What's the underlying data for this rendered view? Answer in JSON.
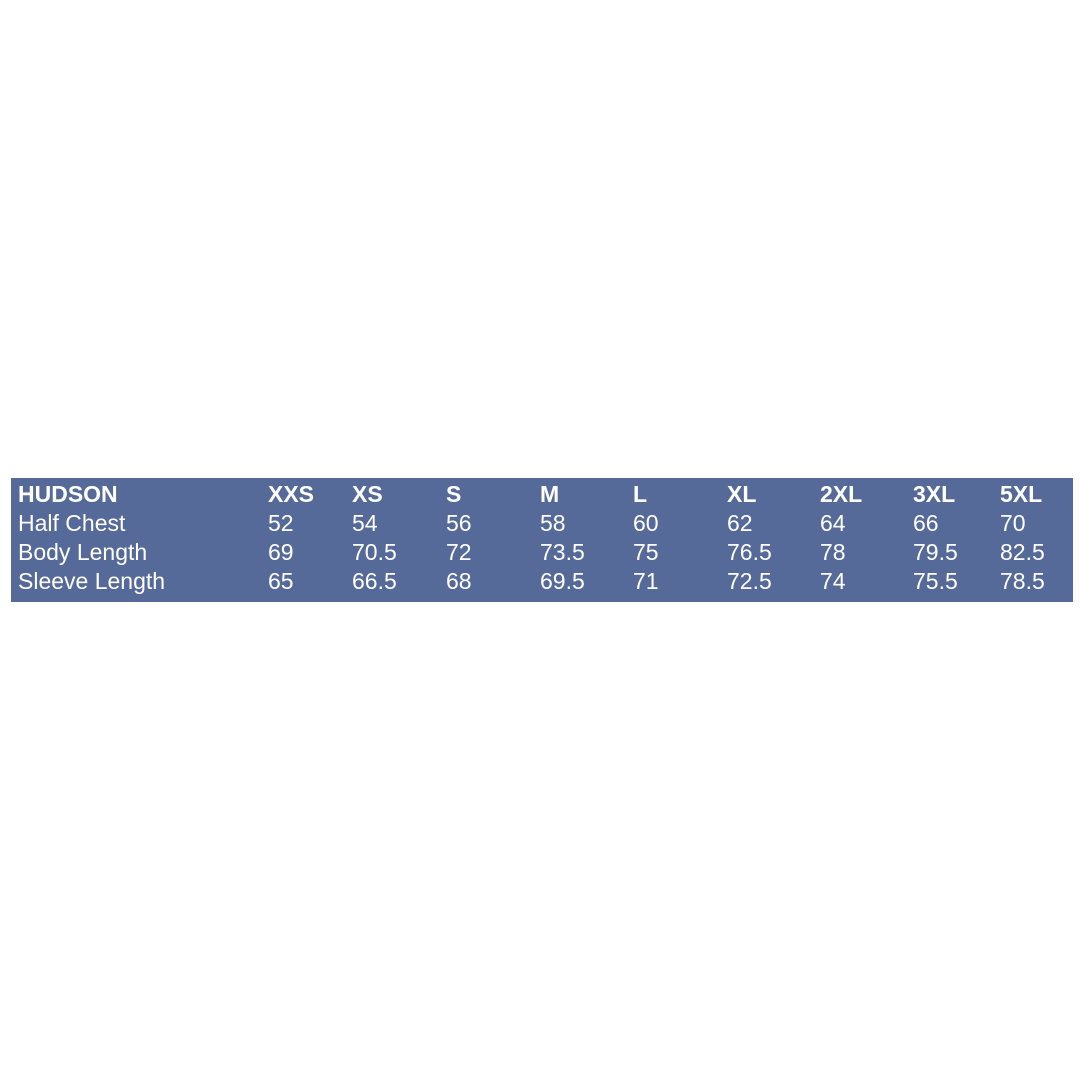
{
  "colors": {
    "page_background": "#ffffff",
    "table_background": "#566a99",
    "table_text": "#ffffff"
  },
  "chart_data": {
    "type": "table",
    "title": "HUDSON",
    "columns": [
      "HUDSON",
      "XXS",
      "XS",
      "S",
      "M",
      "L",
      "XL",
      "2XL",
      "3XL",
      "5XL"
    ],
    "rows": [
      {
        "label": "Half Chest",
        "values": [
          "52",
          "54",
          "56",
          "58",
          "60",
          "62",
          "64",
          "66",
          "70"
        ]
      },
      {
        "label": "Body Length",
        "values": [
          "69",
          "70.5",
          "72",
          "73.5",
          "75",
          "76.5",
          "78",
          "79.5",
          "82.5"
        ]
      },
      {
        "label": "Sleeve Length",
        "values": [
          "65",
          "66.5",
          "68",
          "69.5",
          "71",
          "72.5",
          "74",
          "75.5",
          "78.5"
        ]
      }
    ],
    "layout": {
      "legend": "none",
      "grid": "off",
      "header_style": "bold",
      "value_alignment": "left"
    }
  }
}
